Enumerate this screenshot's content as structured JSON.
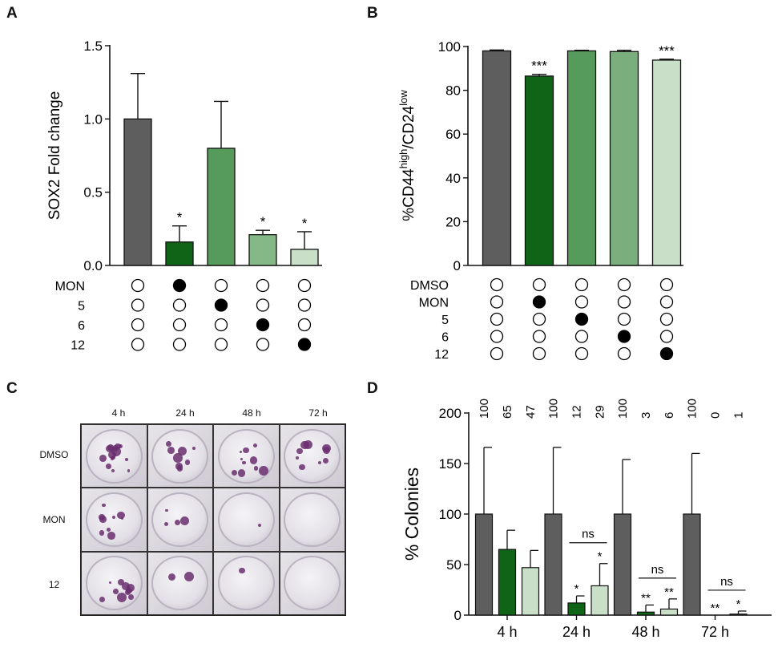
{
  "panels": {
    "a": "A",
    "b": "B",
    "c": "C",
    "d": "D"
  },
  "colors": {
    "dark_gray": "#5e5e5e",
    "dark_green": "#0f6418",
    "mid_green": "#579b5c",
    "light_green": "#84b887",
    "pale_green": "#c9dfc8",
    "lighter_green": "#7aae7d"
  },
  "chart_data": [
    {
      "id": "A",
      "type": "bar",
      "ylabel": "SOX2 Fold change",
      "ylim": [
        0,
        1.5
      ],
      "yticks": [
        "0.0",
        "0.5",
        "1.0",
        "1.5"
      ],
      "values": [
        1.0,
        0.16,
        0.8,
        0.21,
        0.11
      ],
      "errors": [
        0.31,
        0.11,
        0.32,
        0.03,
        0.12
      ],
      "colors": [
        "#5e5e5e",
        "#0f6418",
        "#579b5c",
        "#84b887",
        "#c9dfc8"
      ],
      "significance": [
        "",
        "*",
        "",
        "*",
        "*"
      ],
      "treatment_rows": [
        {
          "label": "MON",
          "filled": [
            false,
            true,
            false,
            false,
            false
          ]
        },
        {
          "label": "5",
          "filled": [
            false,
            false,
            true,
            false,
            false
          ]
        },
        {
          "label": "6",
          "filled": [
            false,
            false,
            false,
            true,
            false
          ]
        },
        {
          "label": "12",
          "filled": [
            false,
            false,
            false,
            false,
            true
          ]
        }
      ]
    },
    {
      "id": "B",
      "type": "bar",
      "ylabel": "%CD44high/CD24low",
      "ylabel_parts": {
        "a": "%CD44",
        "b": "high",
        "c": "/CD24",
        "d": "low"
      },
      "ylim": [
        0,
        100
      ],
      "yticks": [
        "0",
        "20",
        "40",
        "60",
        "80",
        "100"
      ],
      "values": [
        98,
        86.5,
        98,
        97.7,
        93.8
      ],
      "errors": [
        0.4,
        0.8,
        0.3,
        0.6,
        0.4
      ],
      "colors": [
        "#5e5e5e",
        "#0f6418",
        "#579b5c",
        "#7aae7d",
        "#c9dfc8"
      ],
      "significance": [
        "",
        "***",
        "",
        "",
        "***"
      ],
      "treatment_rows": [
        {
          "label": "DMSO",
          "filled": [
            false,
            false,
            false,
            false,
            false
          ]
        },
        {
          "label": "MON",
          "filled": [
            false,
            true,
            false,
            false,
            false
          ]
        },
        {
          "label": "5",
          "filled": [
            false,
            false,
            true,
            false,
            false
          ]
        },
        {
          "label": "6",
          "filled": [
            false,
            false,
            false,
            true,
            false
          ]
        },
        {
          "label": "12",
          "filled": [
            false,
            false,
            false,
            false,
            true
          ]
        }
      ]
    },
    {
      "id": "C",
      "type": "table",
      "columns": [
        "4 h",
        "24 h",
        "48 h",
        "72 h"
      ],
      "rows": [
        "DMSO",
        "MON",
        "12"
      ]
    },
    {
      "id": "D",
      "type": "bar",
      "ylabel": "% Colonies",
      "ylim": [
        0,
        200
      ],
      "yticks": [
        "0",
        "50",
        "100",
        "150",
        "200"
      ],
      "categories": [
        "4 h",
        "24 h",
        "48 h",
        "72 h"
      ],
      "series": [
        {
          "name": "DMSO",
          "values": [
            100,
            100,
            100,
            100
          ],
          "errors": [
            66,
            66,
            54,
            60
          ],
          "color": "#5e5e5e"
        },
        {
          "name": "MON",
          "values": [
            65,
            12,
            3,
            0
          ],
          "errors": [
            19,
            7,
            7,
            0
          ],
          "color": "#0f6418"
        },
        {
          "name": "12",
          "values": [
            47,
            29,
            6,
            1
          ],
          "errors": [
            17,
            22,
            10,
            3
          ],
          "color": "#c9dfc8"
        }
      ],
      "top_labels": [
        [
          "100",
          "65",
          "47"
        ],
        [
          "100",
          "12",
          "29"
        ],
        [
          "100",
          "3",
          "6"
        ],
        [
          "100",
          "0",
          "1"
        ]
      ],
      "significance": [
        [
          "",
          "",
          ""
        ],
        [
          "",
          "*",
          "*"
        ],
        [
          "",
          "**",
          "**"
        ],
        [
          "",
          "**",
          "*"
        ]
      ],
      "ns_label": "ns"
    }
  ]
}
